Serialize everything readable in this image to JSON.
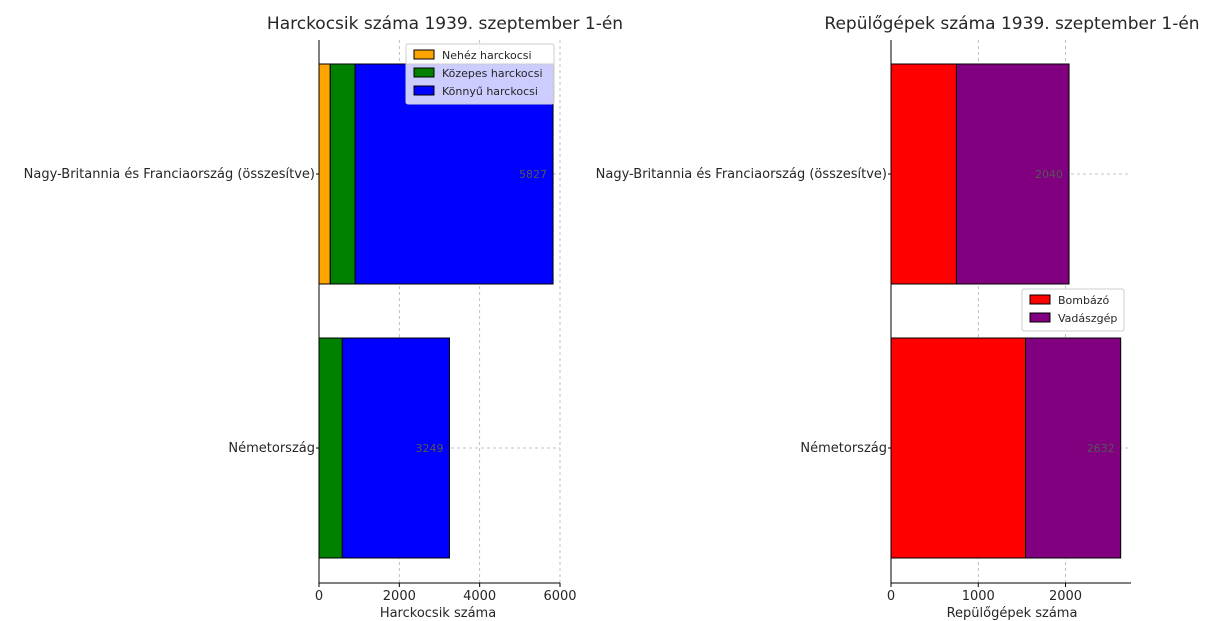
{
  "chart_data": [
    {
      "type": "bar",
      "orientation": "horizontal",
      "stacked": true,
      "title": "Harckocsik száma 1939. szeptember 1-én",
      "xlabel": "Harckocsik száma",
      "ylabel": "",
      "xlim": [
        0,
        6000
      ],
      "xticks": [
        0,
        2000,
        4000,
        6000
      ],
      "grid": true,
      "legend_position": "top-right",
      "categories": [
        "Nagy-Britannia és Franciaország (összesítve)",
        "Németország"
      ],
      "series": [
        {
          "name": "Nehéz harckocsi",
          "color": "#FFA500",
          "values": [
            280,
            0
          ]
        },
        {
          "name": "Közepes harckocsi",
          "color": "#008000",
          "values": [
            620,
            580
          ]
        },
        {
          "name": "Könnyű harckocsi",
          "color": "#0000FF",
          "values": [
            4927,
            2669
          ]
        }
      ],
      "totals_labels": [
        "5827",
        "3249"
      ]
    },
    {
      "type": "bar",
      "orientation": "horizontal",
      "stacked": true,
      "title": "Repülőgépek száma 1939. szeptember 1-én",
      "xlabel": "Repülőgépek száma",
      "ylabel": "",
      "xlim": [
        0,
        2750
      ],
      "xticks": [
        0,
        1000,
        2000
      ],
      "grid": true,
      "legend_position": "center-right",
      "categories": [
        "Nagy-Britannia és Franciaország (összesítve)",
        "Németország"
      ],
      "series": [
        {
          "name": "Bombázó",
          "color": "#FF0000",
          "values": [
            750,
            1542
          ]
        },
        {
          "name": "Vadászgép",
          "color": "#800080",
          "values": [
            1290,
            1090
          ]
        }
      ],
      "totals_labels": [
        "2040",
        "2632"
      ]
    }
  ]
}
